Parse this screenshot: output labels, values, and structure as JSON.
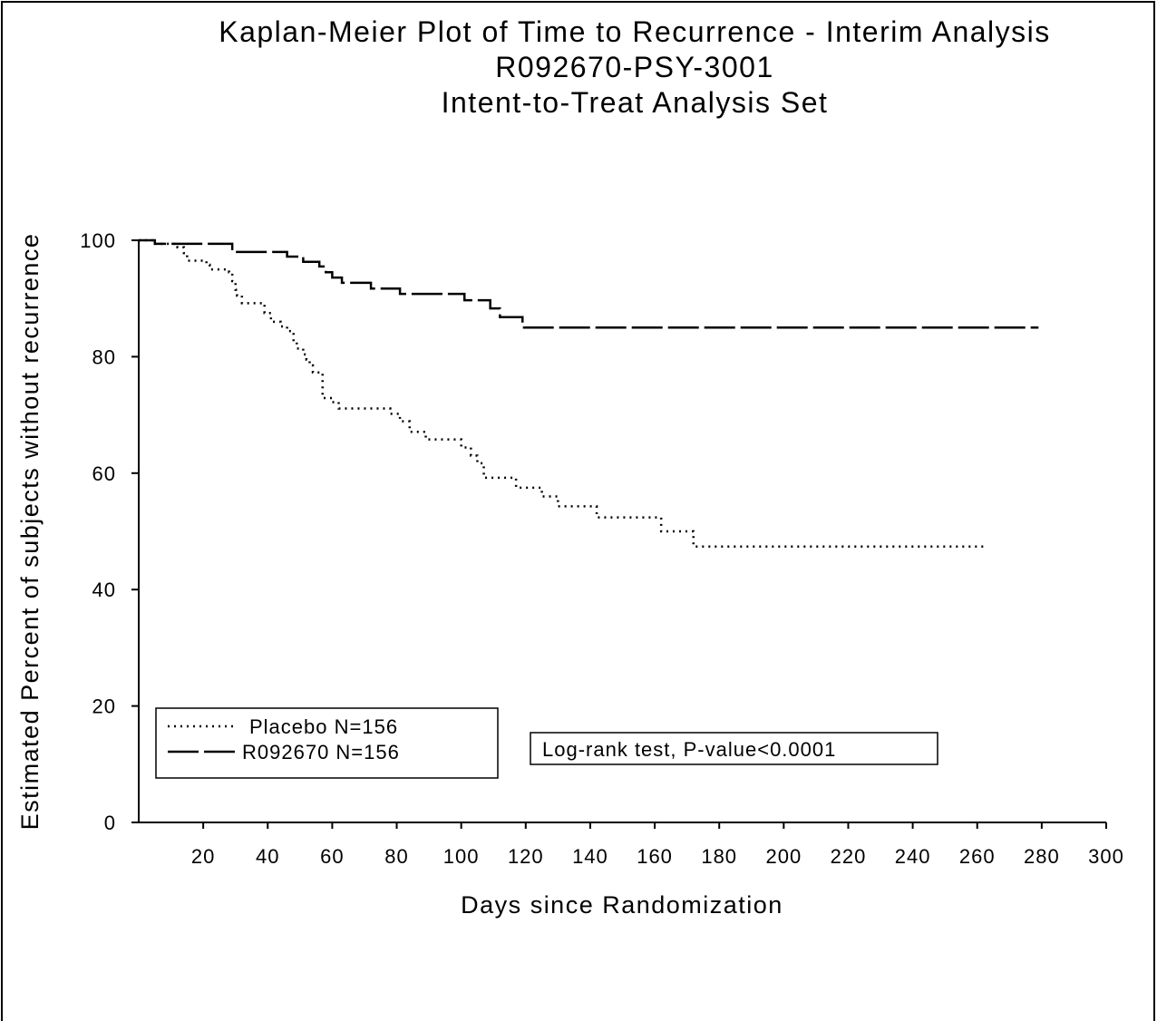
{
  "chart_data": {
    "type": "step",
    "title": "Kaplan-Meier Plot of Time to Recurrence - Interim Analysis",
    "subtitle": [
      "R092670-PSY-3001",
      "Intent-to-Treat Analysis Set"
    ],
    "x_label": "Days since Randomization",
    "y_label": "Estimated Percent of subjects without recurrence",
    "xlim": [
      0,
      300
    ],
    "xticks": [
      20,
      40,
      60,
      80,
      100,
      120,
      140,
      160,
      180,
      200,
      220,
      240,
      260,
      280,
      300
    ],
    "ylim": [
      0,
      100
    ],
    "yticks": [
      0,
      20,
      40,
      60,
      80,
      100
    ],
    "legend": "lower left",
    "annotation": "Log-rank test, P-value<0.0001",
    "series": [
      {
        "name": "Placebo N=156",
        "color": "#000000",
        "line_style": "dotted",
        "x": [
          0,
          5,
          12,
          14,
          15,
          21,
          22,
          28,
          29,
          30,
          30.5,
          32,
          39,
          41,
          44,
          46,
          48,
          49,
          51,
          52,
          53,
          54,
          57,
          60,
          62,
          78,
          81,
          84,
          89,
          100,
          103,
          105,
          107,
          117,
          125,
          130,
          142,
          162,
          172,
          263
        ],
        "values": [
          100,
          99.4,
          98.8,
          97.8,
          96.5,
          95.8,
          95,
          94.5,
          93,
          91.5,
          90.5,
          89.2,
          87.5,
          86,
          85.2,
          84.4,
          82.5,
          81.4,
          80.4,
          79.5,
          78.5,
          77.3,
          72.9,
          72.2,
          71.1,
          70.2,
          68.9,
          67.1,
          65.8,
          64.4,
          63,
          61.7,
          59.2,
          57.5,
          56,
          54.3,
          52.4,
          50,
          47.4,
          47.4
        ]
      },
      {
        "name": "R092670 N=156",
        "color": "#000000",
        "line_style": "dashed",
        "x": [
          0,
          5,
          29,
          46,
          51,
          56,
          58,
          60,
          63,
          72,
          81,
          101,
          109,
          112,
          119,
          279
        ],
        "values": [
          100,
          99.4,
          98,
          97.2,
          96.3,
          95.5,
          94.5,
          93.6,
          92.7,
          91.7,
          90.8,
          89.7,
          88.3,
          86.8,
          85,
          85
        ]
      }
    ]
  }
}
